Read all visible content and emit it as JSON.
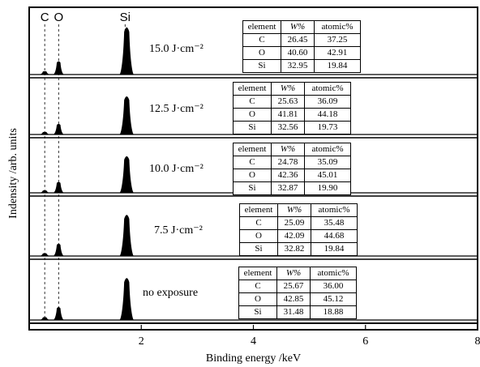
{
  "chart_data": {
    "type": "line",
    "title": "",
    "xlabel": "Binding energy /keV",
    "ylabel": "Indensity /arb. units",
    "xlim": [
      0,
      8
    ],
    "x_ticks": [
      "2",
      "4",
      "6",
      "8"
    ],
    "x_tick_values": [
      2,
      4,
      6,
      8
    ],
    "peak_labels": [
      {
        "text": "C",
        "x": 0.277
      },
      {
        "text": "O",
        "x": 0.525
      },
      {
        "text": "Si",
        "x": 1.74
      }
    ],
    "table_header": [
      "element",
      "W%",
      "atomic%"
    ],
    "panels": [
      {
        "label": "15.0 J·cm⁻²",
        "series": [
          {
            "x": 0.277,
            "relative_intensity": 0.07
          },
          {
            "x": 0.525,
            "relative_intensity": 0.28
          },
          {
            "x": 1.74,
            "relative_intensity": 1.0
          }
        ],
        "rows": [
          {
            "element": "C",
            "w": "26.45",
            "atomic": "37.25"
          },
          {
            "element": "O",
            "w": "40.60",
            "atomic": "42.91"
          },
          {
            "element": "Si",
            "w": "32.95",
            "atomic": "19.84"
          }
        ]
      },
      {
        "label": "12.5 J·cm⁻²",
        "series": [
          {
            "x": 0.277,
            "relative_intensity": 0.07
          },
          {
            "x": 0.525,
            "relative_intensity": 0.28
          },
          {
            "x": 1.74,
            "relative_intensity": 1.0
          }
        ],
        "rows": [
          {
            "element": "C",
            "w": "25.63",
            "atomic": "36.09"
          },
          {
            "element": "O",
            "w": "41.81",
            "atomic": "44.18"
          },
          {
            "element": "Si",
            "w": "32.56",
            "atomic": "19.73"
          }
        ]
      },
      {
        "label": "10.0 J·cm⁻²",
        "series": [
          {
            "x": 0.277,
            "relative_intensity": 0.07
          },
          {
            "x": 0.525,
            "relative_intensity": 0.3
          },
          {
            "x": 1.74,
            "relative_intensity": 1.0
          }
        ],
        "rows": [
          {
            "element": "C",
            "w": "24.78",
            "atomic": "35.09"
          },
          {
            "element": "O",
            "w": "42.36",
            "atomic": "45.01"
          },
          {
            "element": "Si",
            "w": "32.87",
            "atomic": "19.90"
          }
        ]
      },
      {
        "label": "7.5 J·cm⁻²",
        "series": [
          {
            "x": 0.277,
            "relative_intensity": 0.07
          },
          {
            "x": 0.525,
            "relative_intensity": 0.3
          },
          {
            "x": 1.74,
            "relative_intensity": 1.0
          }
        ],
        "rows": [
          {
            "element": "C",
            "w": "25.09",
            "atomic": "35.48"
          },
          {
            "element": "O",
            "w": "42.09",
            "atomic": "44.68"
          },
          {
            "element": "Si",
            "w": "32.82",
            "atomic": "19.84"
          }
        ]
      },
      {
        "label": "no exposure",
        "series": [
          {
            "x": 0.277,
            "relative_intensity": 0.07
          },
          {
            "x": 0.525,
            "relative_intensity": 0.31
          },
          {
            "x": 1.74,
            "relative_intensity": 1.0
          }
        ],
        "rows": [
          {
            "element": "C",
            "w": "25.67",
            "atomic": "36.00"
          },
          {
            "element": "O",
            "w": "42.85",
            "atomic": "45.12"
          },
          {
            "element": "Si",
            "w": "31.48",
            "atomic": "18.88"
          }
        ]
      }
    ]
  }
}
